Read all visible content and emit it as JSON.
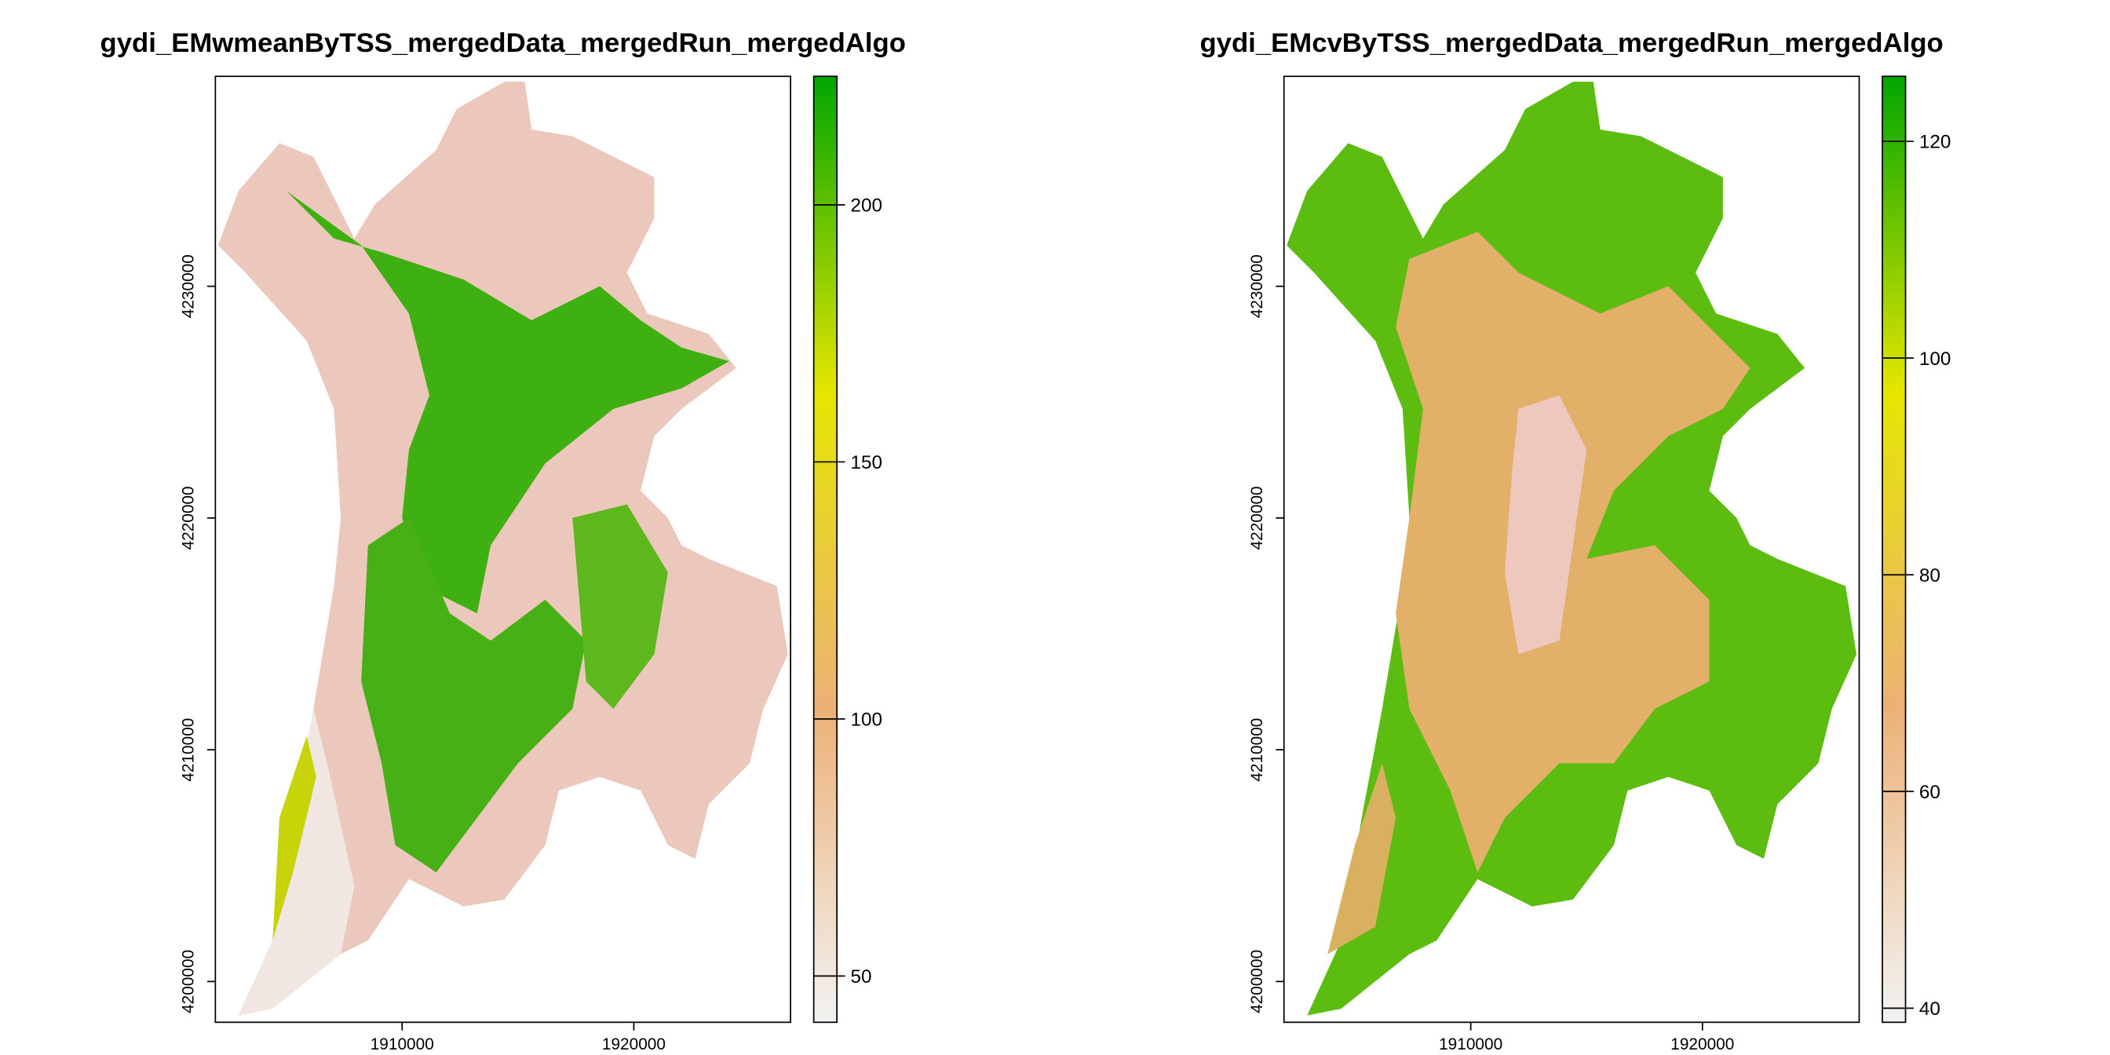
{
  "chart_data": [
    {
      "type": "raster",
      "title": "gydi_EMwmeanByTSS_mergedData_mergedRun_mergedAlgo",
      "xlim": [
        1901940,
        1926765
      ],
      "ylim": [
        4198240,
        4239060
      ],
      "xticks": [
        1910000,
        1920000
      ],
      "yticks": [
        4200000,
        4210000,
        4220000,
        4230000
      ],
      "zlim": [
        41,
        225
      ],
      "zticks": [
        50,
        100,
        150,
        200
      ],
      "colors": [
        "#00A600",
        "#E6E600",
        "#ECB176",
        "#F2F2F2"
      ]
    },
    {
      "type": "raster",
      "title": "gydi_EMcvByTSS_mergedData_mergedRun_mergedAlgo",
      "xlim": [
        1901940,
        1926765
      ],
      "ylim": [
        4198240,
        4239060
      ],
      "xticks": [
        1910000,
        1920000
      ],
      "yticks": [
        4200000,
        4210000,
        4220000,
        4230000
      ],
      "zlim": [
        38.7,
        126
      ],
      "zticks": [
        40,
        60,
        80,
        100,
        120
      ],
      "colors": [
        "#00A600",
        "#E6E600",
        "#ECB176",
        "#F2F2F2"
      ]
    }
  ]
}
